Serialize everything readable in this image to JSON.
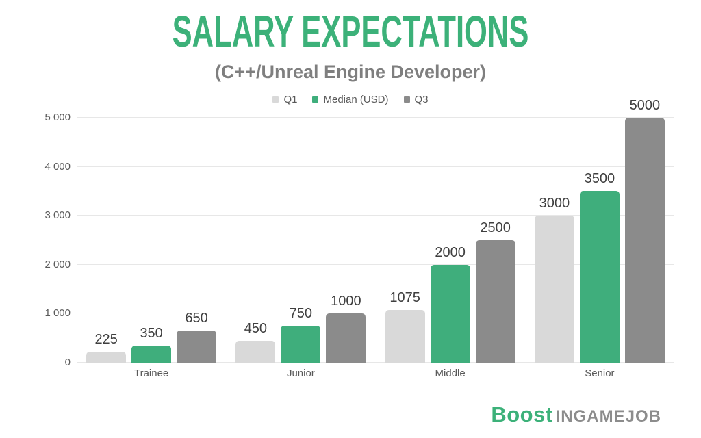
{
  "title": "SALARY EXPECTATIONS",
  "subtitle": "(C++/Unreal Engine Developer)",
  "branding": {
    "boost": "Boost",
    "ingamejob": "INGAMEJOB"
  },
  "colors": {
    "background": "#FFFFFF",
    "title_green": "#3CB179",
    "subtitle_gray": "#7F7F7F",
    "grid": "#E7E7E7",
    "axis_text": "#595959",
    "value_text": "#3F3F3F",
    "logo_green": "#3CB179",
    "logo_gray": "#8C8C8C"
  },
  "chart_data": {
    "type": "bar",
    "title": "SALARY EXPECTATIONS",
    "subtitle": "(C++/Unreal Engine Developer)",
    "categories": [
      "Trainee",
      "Junior",
      "Middle",
      "Senior"
    ],
    "series": [
      {
        "name": "Q1",
        "color": "#D9D9D9",
        "values": [
          225,
          450,
          1075,
          3000
        ]
      },
      {
        "name": "Median (USD)",
        "color": "#3FAE7C",
        "values": [
          350,
          750,
          2000,
          3500
        ]
      },
      {
        "name": "Q3",
        "color": "#8B8B8B",
        "values": [
          650,
          1000,
          2500,
          5000
        ]
      }
    ],
    "ylim": [
      0,
      5000
    ],
    "ytick_step": 1000,
    "ytick_labels": [
      "0",
      "1 000",
      "2 000",
      "3 000",
      "4 000",
      "5 000"
    ],
    "grid": true,
    "legend_position": "top",
    "data_labels": true
  }
}
